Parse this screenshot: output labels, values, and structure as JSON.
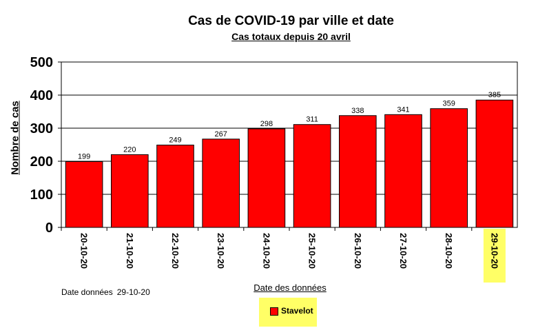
{
  "chart_data": {
    "type": "bar",
    "title": "Cas de COVID-19 par ville et date",
    "subtitle": "Cas totaux depuis 20 avril",
    "ylabel": "Nombre de cas",
    "xlabel": "Date des données",
    "categories": [
      "20-10-20",
      "21-10-20",
      "22-10-20",
      "23-10-20",
      "24-10-20",
      "25-10-20",
      "26-10-20",
      "27-10-20",
      "28-10-20",
      "29-10-20"
    ],
    "series": [
      {
        "name": "Stavelot",
        "values": [
          199,
          220,
          249,
          267,
          298,
          311,
          338,
          341,
          359,
          385
        ]
      }
    ],
    "ylim": [
      0,
      500
    ],
    "yticks": [
      0,
      100,
      200,
      300,
      400,
      500
    ],
    "grid": true,
    "legend_position": "bottom",
    "highlighted_category": "29-10-20",
    "bar_color": "#ff0000",
    "highlight_color": "#ffff66"
  },
  "footer": {
    "date_label": "Date données",
    "date_value": "29-10-20"
  }
}
